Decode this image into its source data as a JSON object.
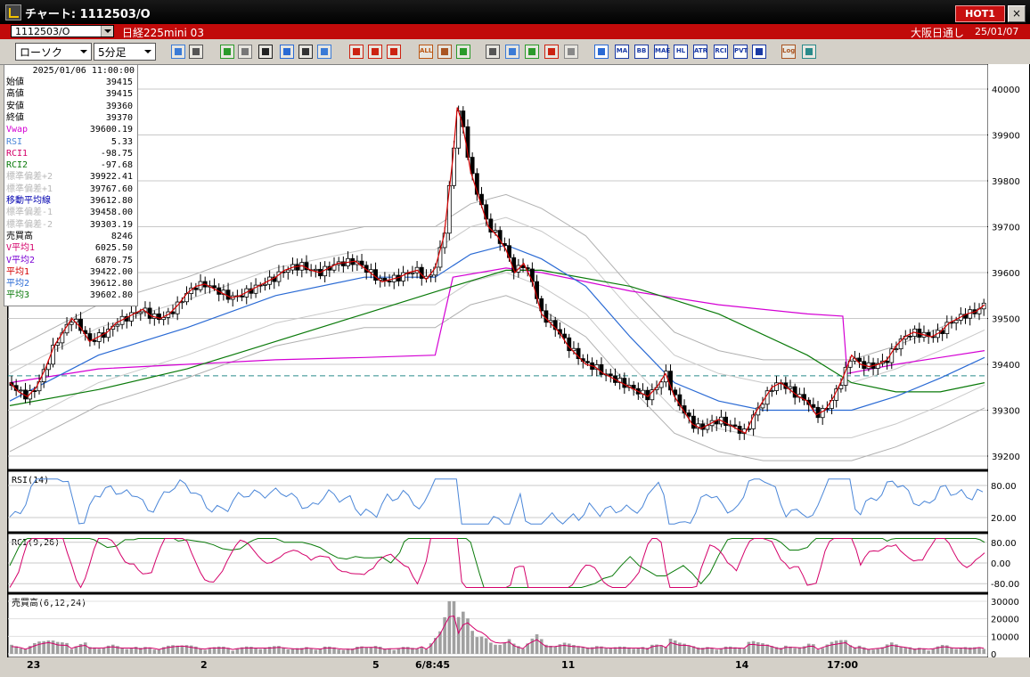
{
  "window": {
    "title": "チャート: 1112503/O",
    "hot_label": "HOT1",
    "close_label": "×"
  },
  "infobar": {
    "symbol": "1112503/O",
    "instrument": "日経225mini 03",
    "session": "大阪日通し",
    "date": "25/01/07"
  },
  "toolbar": {
    "chart_type": "ローソク",
    "interval": "5分足",
    "icons": [
      "zoom-icon",
      "crosshair-icon",
      "draw-line-icon",
      "eraser-icon",
      "pointer-icon",
      "undo-icon",
      "note-icon",
      "trash-icon",
      "candle-icon",
      "bar-icon",
      "line-icon",
      "all-icon",
      "settings-icon",
      "tools-icon",
      "color-icon",
      "download-icon",
      "search-icon",
      "grid-icon",
      "compare-icon",
      "blank-icon",
      "volume-icon",
      "ma-icon",
      "bb-icon",
      "mae-icon",
      "hl-icon",
      "atr-icon",
      "rci-icon",
      "pvt-icon",
      "window-icon",
      "log-icon",
      "export-icon"
    ],
    "icon_texts": {
      "all": "ALL",
      "ma": "MA",
      "bb": "BB",
      "mae": "MAE",
      "hl": "HL",
      "atr": "ATR",
      "rci": "RCI",
      "pvt": "PVT",
      "log": "Log"
    }
  },
  "readout": {
    "datetime": "2025/01/06 11:00:00",
    "rows": [
      {
        "label": "始値",
        "value": "39415",
        "color": "#000000"
      },
      {
        "label": "高値",
        "value": "39415",
        "color": "#000000"
      },
      {
        "label": "安値",
        "value": "39360",
        "color": "#000000"
      },
      {
        "label": "終値",
        "value": "39370",
        "color": "#000000"
      },
      {
        "label": "Vwap",
        "value": "39600.19",
        "color": "#d400d4"
      },
      {
        "label": "RSI",
        "value": "5.33",
        "color": "#4a86d8"
      },
      {
        "label": "RCI1",
        "value": "-98.75",
        "color": "#d4006a"
      },
      {
        "label": "RCI2",
        "value": "-97.68",
        "color": "#0a7a0a"
      },
      {
        "label": "標準偏差+2",
        "value": "39922.41",
        "color": "#b8b8b8"
      },
      {
        "label": "標準偏差+1",
        "value": "39767.60",
        "color": "#b8b8b8"
      },
      {
        "label": "移動平均線",
        "value": "39612.80",
        "color": "#0000b0"
      },
      {
        "label": "標準偏差-1",
        "value": "39458.00",
        "color": "#b8b8b8"
      },
      {
        "label": "標準偏差-2",
        "value": "39303.19",
        "color": "#b8b8b8"
      },
      {
        "label": "売買高",
        "value": "8246",
        "color": "#000000"
      },
      {
        "label": "V平均1",
        "value": "6025.50",
        "color": "#d4006a"
      },
      {
        "label": "V平均2",
        "value": "6870.75",
        "color": "#7a00d4"
      },
      {
        "label": "平均1",
        "value": "39422.00",
        "color": "#d40000"
      },
      {
        "label": "平均2",
        "value": "39612.80",
        "color": "#2a6ad4"
      },
      {
        "label": "平均3",
        "value": "39602.80",
        "color": "#0a7a0a"
      }
    ]
  },
  "chart_data": {
    "type": "candlestick",
    "price_axis": {
      "ticks": [
        "40000",
        "39900",
        "39800",
        "39700",
        "39600",
        "39500",
        "39400",
        "39300",
        "39200"
      ],
      "range": [
        39200,
        40000
      ]
    },
    "rsi": {
      "label": "RSI(14)",
      "ticks": [
        "80.00",
        "20.00"
      ]
    },
    "rci": {
      "label": "RCI(9,26)",
      "ticks": [
        "80.00",
        "0.00",
        "-80.00"
      ]
    },
    "volume": {
      "label": "売買高(6,12,24)",
      "ticks": [
        "30000",
        "20000",
        "10000",
        "0"
      ]
    },
    "time_axis": [
      "23",
      "2",
      "5",
      "6/8:45",
      "11",
      "14",
      "17:00"
    ],
    "close_path": [
      [
        0,
        39360
      ],
      [
        10,
        39340
      ],
      [
        20,
        39330
      ],
      [
        30,
        39350
      ],
      [
        40,
        39390
      ],
      [
        50,
        39440
      ],
      [
        60,
        39470
      ],
      [
        70,
        39500
      ],
      [
        80,
        39480
      ],
      [
        90,
        39450
      ],
      [
        100,
        39460
      ],
      [
        110,
        39470
      ],
      [
        120,
        39490
      ],
      [
        130,
        39500
      ],
      [
        140,
        39510
      ],
      [
        150,
        39520
      ],
      [
        160,
        39505
      ],
      [
        170,
        39500
      ],
      [
        180,
        39510
      ],
      [
        190,
        39530
      ],
      [
        200,
        39555
      ],
      [
        210,
        39570
      ],
      [
        220,
        39575
      ],
      [
        230,
        39565
      ],
      [
        240,
        39555
      ],
      [
        250,
        39545
      ],
      [
        260,
        39550
      ],
      [
        270,
        39560
      ],
      [
        280,
        39570
      ],
      [
        290,
        39580
      ],
      [
        300,
        39590
      ],
      [
        310,
        39605
      ],
      [
        320,
        39612
      ],
      [
        330,
        39615
      ],
      [
        340,
        39605
      ],
      [
        350,
        39600
      ],
      [
        360,
        39610
      ],
      [
        370,
        39620
      ],
      [
        380,
        39622
      ],
      [
        390,
        39625
      ],
      [
        400,
        39610
      ],
      [
        410,
        39595
      ],
      [
        420,
        39580
      ],
      [
        430,
        39585
      ],
      [
        440,
        39590
      ],
      [
        450,
        39600
      ],
      [
        460,
        39605
      ],
      [
        470,
        39585
      ],
      [
        480,
        39610
      ],
      [
        490,
        39680
      ],
      [
        500,
        39850
      ],
      [
        505,
        39960
      ],
      [
        510,
        39930
      ],
      [
        515,
        39880
      ],
      [
        520,
        39820
      ],
      [
        530,
        39760
      ],
      [
        540,
        39700
      ],
      [
        550,
        39680
      ],
      [
        560,
        39650
      ],
      [
        570,
        39600
      ],
      [
        580,
        39620
      ],
      [
        590,
        39580
      ],
      [
        600,
        39510
      ],
      [
        610,
        39490
      ],
      [
        620,
        39470
      ],
      [
        630,
        39440
      ],
      [
        640,
        39420
      ],
      [
        650,
        39400
      ],
      [
        660,
        39395
      ],
      [
        670,
        39380
      ],
      [
        680,
        39370
      ],
      [
        690,
        39360
      ],
      [
        700,
        39350
      ],
      [
        710,
        39340
      ],
      [
        720,
        39330
      ],
      [
        730,
        39350
      ],
      [
        740,
        39380
      ],
      [
        750,
        39330
      ],
      [
        760,
        39300
      ],
      [
        770,
        39270
      ],
      [
        780,
        39260
      ],
      [
        790,
        39270
      ],
      [
        800,
        39280
      ],
      [
        810,
        39270
      ],
      [
        820,
        39260
      ],
      [
        830,
        39250
      ],
      [
        840,
        39290
      ],
      [
        850,
        39320
      ],
      [
        860,
        39350
      ],
      [
        870,
        39360
      ],
      [
        880,
        39345
      ],
      [
        890,
        39330
      ],
      [
        900,
        39320
      ],
      [
        910,
        39290
      ],
      [
        920,
        39300
      ],
      [
        930,
        39330
      ],
      [
        940,
        39370
      ],
      [
        950,
        39420
      ],
      [
        960,
        39400
      ],
      [
        970,
        39395
      ],
      [
        980,
        39400
      ],
      [
        990,
        39410
      ],
      [
        1000,
        39440
      ],
      [
        1010,
        39460
      ],
      [
        1020,
        39470
      ],
      [
        1030,
        39465
      ],
      [
        1040,
        39460
      ],
      [
        1050,
        39470
      ],
      [
        1060,
        39490
      ],
      [
        1070,
        39500
      ],
      [
        1080,
        39510
      ],
      [
        1090,
        39515
      ],
      [
        1100,
        39530
      ]
    ],
    "ma_path": [
      [
        0,
        39320
      ],
      [
        100,
        39420
      ],
      [
        200,
        39480
      ],
      [
        300,
        39550
      ],
      [
        400,
        39590
      ],
      [
        480,
        39590
      ],
      [
        520,
        39640
      ],
      [
        560,
        39660
      ],
      [
        600,
        39630
      ],
      [
        650,
        39570
      ],
      [
        700,
        39460
      ],
      [
        750,
        39360
      ],
      [
        800,
        39320
      ],
      [
        850,
        39300
      ],
      [
        900,
        39300
      ],
      [
        950,
        39300
      ],
      [
        1000,
        39330
      ],
      [
        1050,
        39370
      ],
      [
        1100,
        39415
      ]
    ],
    "long_ma_path": [
      [
        0,
        39310
      ],
      [
        100,
        39345
      ],
      [
        200,
        39390
      ],
      [
        300,
        39450
      ],
      [
        400,
        39510
      ],
      [
        500,
        39570
      ],
      [
        560,
        39605
      ],
      [
        600,
        39605
      ],
      [
        700,
        39570
      ],
      [
        800,
        39510
      ],
      [
        900,
        39420
      ],
      [
        950,
        39360
      ],
      [
        1000,
        39340
      ],
      [
        1050,
        39340
      ],
      [
        1100,
        39360
      ]
    ],
    "vwap_path": [
      [
        0,
        39360
      ],
      [
        100,
        39390
      ],
      [
        200,
        39400
      ],
      [
        300,
        39410
      ],
      [
        400,
        39415
      ],
      [
        480,
        39420
      ],
      [
        500,
        39590
      ],
      [
        560,
        39610
      ],
      [
        600,
        39600
      ],
      [
        700,
        39560
      ],
      [
        800,
        39530
      ],
      [
        900,
        39510
      ],
      [
        940,
        39505
      ],
      [
        945,
        39380
      ],
      [
        1000,
        39400
      ],
      [
        1050,
        39415
      ],
      [
        1100,
        39430
      ]
    ],
    "dashed_level": 39375
  }
}
